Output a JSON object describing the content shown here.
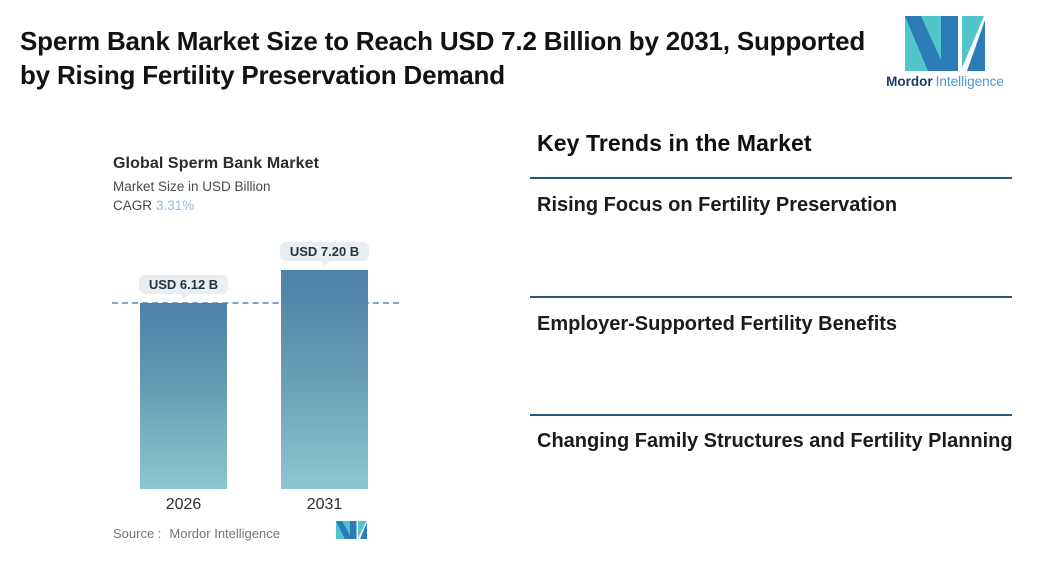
{
  "header": {
    "title": "Sperm Bank Market Size to Reach USD 7.2 Billion by 2031, Supported by Rising Fertility Preservation Demand",
    "title_line1": "Sperm Bank Market Size to Reach USD 7.2 Billion by 2031, Supported",
    "title_line2": "by Rising Fertility Preservation Demand"
  },
  "brand": {
    "name_primary": "Mordor",
    "name_secondary": "Intelligence",
    "colors": {
      "teal": "#52c5ca",
      "blue": "#2c7cb7",
      "navy": "#1e3a66",
      "light_blue": "#4a97c9"
    }
  },
  "chart": {
    "title": "Global Sperm Bank Market",
    "subtitle": "Market Size in USD Billion",
    "cagr_label": "CAGR",
    "cagr_value": "3.31%",
    "source_label": "Source :",
    "source_value": "Mordor Intelligence"
  },
  "chart_data": {
    "type": "bar",
    "title": "Global Sperm Bank Market",
    "ylabel": "Market Size in USD Billion",
    "cagr": "3.31%",
    "categories": [
      "2026",
      "2031"
    ],
    "values": [
      6.12,
      7.2
    ],
    "value_labels": [
      "USD 6.12 B",
      "USD 7.20 B"
    ],
    "baseline_at_first_value": true,
    "legend": "none",
    "grid": "off",
    "colors": {
      "bar_gradient_top": "#4d80a8",
      "bar_gradient_bottom": "#8bc8d0",
      "baseline_dash": "#7aa6cb",
      "badge_background": "#e9eef2",
      "badge_text": "#24343f",
      "cagr_accent": "#8fbbdc"
    }
  },
  "trends": {
    "heading": "Key Trends in the Market",
    "divider_color": "#27597a",
    "items": [
      {
        "label": "Rising Focus on Fertility Preservation"
      },
      {
        "label": "Employer-Supported Fertility Benefits"
      },
      {
        "label": "Changing Family Structures and Fertility Planning"
      }
    ]
  }
}
